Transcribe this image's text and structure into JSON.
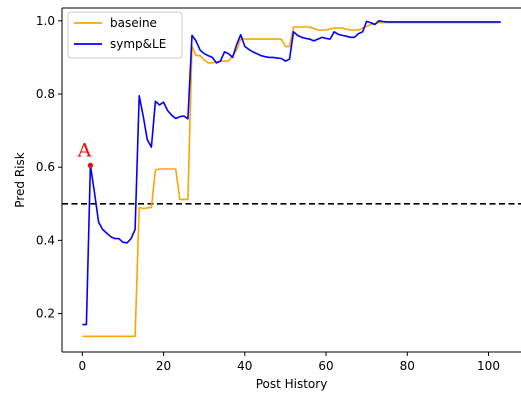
{
  "chart_data": {
    "type": "line",
    "xlabel": "Post History",
    "ylabel": "Pred Risk",
    "xlim": [
      -5,
      108
    ],
    "ylim": [
      0.095,
      1.035
    ],
    "xticks": [
      0,
      20,
      40,
      60,
      80,
      100
    ],
    "yticks": [
      0.2,
      0.4,
      0.6,
      0.8,
      1.0
    ],
    "xtick_labels": [
      "0",
      "20",
      "40",
      "60",
      "80",
      "100"
    ],
    "ytick_labels": [
      "0.2",
      "0.4",
      "0.6",
      "0.8",
      "1.0"
    ],
    "grid": false,
    "legend_position": "top-left",
    "threshold": {
      "y": 0.5,
      "style": "dashed",
      "color": "#000000"
    },
    "annotation": {
      "text": "A",
      "x": 2,
      "y": 0.605,
      "color": "#ff0000"
    },
    "series": [
      {
        "name": "baseine",
        "color": "#FFA500",
        "x": [
          0,
          13,
          14,
          15,
          17,
          18,
          19,
          23,
          24,
          25,
          26,
          27,
          28,
          29,
          30,
          31,
          32,
          34,
          36,
          38,
          39,
          40,
          41,
          43,
          45,
          47,
          49,
          50,
          51,
          52,
          55,
          56,
          58,
          60,
          62,
          64,
          66,
          68,
          69,
          70,
          71,
          73,
          80,
          90,
          103
        ],
        "y": [
          0.138,
          0.138,
          0.49,
          0.487,
          0.49,
          0.592,
          0.595,
          0.595,
          0.512,
          0.512,
          0.512,
          0.93,
          0.905,
          0.905,
          0.893,
          0.885,
          0.885,
          0.89,
          0.89,
          0.92,
          0.95,
          0.95,
          0.95,
          0.95,
          0.95,
          0.95,
          0.95,
          0.93,
          0.93,
          0.983,
          0.983,
          0.983,
          0.975,
          0.975,
          0.98,
          0.98,
          0.975,
          0.975,
          0.98,
          0.985,
          0.99,
          0.995,
          0.995,
          0.995,
          0.995
        ]
      },
      {
        "name": "symp&LE",
        "color": "#0000FF",
        "x": [
          0,
          1,
          2,
          3,
          4,
          5,
          6,
          7,
          8,
          9,
          10,
          11,
          12,
          13,
          14,
          15,
          16,
          17,
          18,
          19,
          20,
          21,
          22,
          23,
          24,
          25,
          26,
          27,
          28,
          29,
          30,
          31,
          32,
          33,
          34,
          35,
          36,
          37,
          38,
          39,
          40,
          41,
          42,
          43,
          44,
          45,
          46,
          47,
          48,
          49,
          50,
          51,
          52,
          53,
          54,
          55,
          56,
          57,
          58,
          59,
          60,
          61,
          62,
          63,
          64,
          65,
          66,
          67,
          68,
          69,
          70,
          71,
          72,
          73,
          74,
          75,
          80,
          90,
          103
        ],
        "y": [
          0.17,
          0.17,
          0.605,
          0.53,
          0.45,
          0.43,
          0.42,
          0.41,
          0.405,
          0.405,
          0.395,
          0.393,
          0.405,
          0.43,
          0.795,
          0.74,
          0.675,
          0.655,
          0.78,
          0.77,
          0.778,
          0.755,
          0.742,
          0.733,
          0.738,
          0.74,
          0.732,
          0.96,
          0.945,
          0.92,
          0.91,
          0.905,
          0.9,
          0.885,
          0.89,
          0.915,
          0.91,
          0.9,
          0.935,
          0.962,
          0.93,
          0.922,
          0.915,
          0.91,
          0.905,
          0.902,
          0.9,
          0.9,
          0.898,
          0.897,
          0.89,
          0.895,
          0.97,
          0.96,
          0.955,
          0.952,
          0.95,
          0.945,
          0.95,
          0.955,
          0.952,
          0.95,
          0.97,
          0.963,
          0.96,
          0.958,
          0.955,
          0.955,
          0.965,
          0.97,
          0.998,
          0.995,
          0.99,
          1.0,
          0.998,
          0.997,
          0.997,
          0.997,
          0.997
        ]
      }
    ]
  }
}
